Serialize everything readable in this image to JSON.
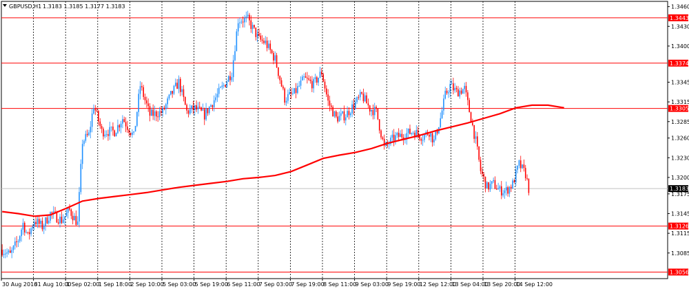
{
  "header": {
    "symbol": "GBPUSD,H1",
    "ohlc": "1.3183 1.3185 1.3177 1.3183"
  },
  "colors": {
    "background": "#ffffff",
    "grid": "#000000",
    "bull_candle": "#1e90ff",
    "bear_candle": "#ff0000",
    "moving_average": "#ff0000",
    "level_line": "#ff0000",
    "level_label_bg": "#ff0000",
    "level_label_text": "#ffffff",
    "current_price_line": "#c0c0c0",
    "current_price_label_bg": "#000000"
  },
  "chart_data": {
    "type": "candlestick",
    "title": "GBPUSD,H1",
    "ylim": [
      1.3046,
      1.3468
    ],
    "y_ticks": [
      1.346,
      1.343,
      1.34,
      1.3345,
      1.3315,
      1.3285,
      1.326,
      1.323,
      1.32,
      1.3175,
      1.3145,
      1.3115,
      1.3085
    ],
    "x_tick_labels": [
      "30 Aug 2016",
      "31 Aug 10:00",
      "1 Sep 02:00",
      "1 Sep 18:00",
      "2 Sep 10:00",
      "5 Sep 03:00",
      "5 Sep 19:00",
      "6 Sep 11:00",
      "7 Sep 03:00",
      "7 Sep 19:00",
      "8 Sep 11:00",
      "9 Sep 03:00",
      "9 Sep 19:00",
      "12 Sep 12:00",
      "13 Sep 04:00",
      "13 Sep 20:00",
      "14 Sep 12:00"
    ],
    "grid": true,
    "horizontal_levels": [
      {
        "value": 1.3443,
        "label": "1.3443"
      },
      {
        "value": 1.3374,
        "label": "1.3374"
      },
      {
        "value": 1.3305,
        "label": "1.3305"
      },
      {
        "value": 1.3126,
        "label": "1.3126"
      },
      {
        "value": 1.3056,
        "label": "1.3056"
      }
    ],
    "current_price": {
      "value": 1.3183,
      "label": "1.3183"
    },
    "moving_average": [
      {
        "i": 0,
        "v": 1.3148
      },
      {
        "i": 10,
        "v": 1.3145
      },
      {
        "i": 20,
        "v": 1.3141
      },
      {
        "i": 30,
        "v": 1.3143
      },
      {
        "i": 40,
        "v": 1.3153
      },
      {
        "i": 50,
        "v": 1.3164
      },
      {
        "i": 60,
        "v": 1.3168
      },
      {
        "i": 70,
        "v": 1.3171
      },
      {
        "i": 80,
        "v": 1.3174
      },
      {
        "i": 90,
        "v": 1.3177
      },
      {
        "i": 100,
        "v": 1.3181
      },
      {
        "i": 110,
        "v": 1.3185
      },
      {
        "i": 120,
        "v": 1.3188
      },
      {
        "i": 130,
        "v": 1.3191
      },
      {
        "i": 140,
        "v": 1.3194
      },
      {
        "i": 150,
        "v": 1.3198
      },
      {
        "i": 160,
        "v": 1.32
      },
      {
        "i": 170,
        "v": 1.3203
      },
      {
        "i": 180,
        "v": 1.3209
      },
      {
        "i": 190,
        "v": 1.3219
      },
      {
        "i": 200,
        "v": 1.3229
      },
      {
        "i": 210,
        "v": 1.3234
      },
      {
        "i": 220,
        "v": 1.3238
      },
      {
        "i": 230,
        "v": 1.3244
      },
      {
        "i": 240,
        "v": 1.3252
      },
      {
        "i": 250,
        "v": 1.3258
      },
      {
        "i": 260,
        "v": 1.3264
      },
      {
        "i": 270,
        "v": 1.3271
      },
      {
        "i": 280,
        "v": 1.3277
      },
      {
        "i": 290,
        "v": 1.3283
      },
      {
        "i": 300,
        "v": 1.329
      },
      {
        "i": 310,
        "v": 1.3297
      },
      {
        "i": 320,
        "v": 1.3306
      },
      {
        "i": 330,
        "v": 1.331
      },
      {
        "i": 340,
        "v": 1.331
      },
      {
        "i": 350,
        "v": 1.3306
      }
    ],
    "anchors": [
      {
        "i": 0,
        "v": 1.309
      },
      {
        "i": 5,
        "v": 1.3082
      },
      {
        "i": 10,
        "v": 1.3105
      },
      {
        "i": 13,
        "v": 1.313
      },
      {
        "i": 16,
        "v": 1.311
      },
      {
        "i": 20,
        "v": 1.3135
      },
      {
        "i": 25,
        "v": 1.3125
      },
      {
        "i": 30,
        "v": 1.3145
      },
      {
        "i": 37,
        "v": 1.3135
      },
      {
        "i": 42,
        "v": 1.315
      },
      {
        "i": 47,
        "v": 1.313
      },
      {
        "i": 50,
        "v": 1.3255
      },
      {
        "i": 54,
        "v": 1.3265
      },
      {
        "i": 57,
        "v": 1.331
      },
      {
        "i": 62,
        "v": 1.327
      },
      {
        "i": 70,
        "v": 1.327
      },
      {
        "i": 75,
        "v": 1.329
      },
      {
        "i": 82,
        "v": 1.3262
      },
      {
        "i": 86,
        "v": 1.334
      },
      {
        "i": 92,
        "v": 1.3295
      },
      {
        "i": 100,
        "v": 1.33
      },
      {
        "i": 105,
        "v": 1.3325
      },
      {
        "i": 110,
        "v": 1.3345
      },
      {
        "i": 115,
        "v": 1.33
      },
      {
        "i": 120,
        "v": 1.3305
      },
      {
        "i": 126,
        "v": 1.3295
      },
      {
        "i": 132,
        "v": 1.3318
      },
      {
        "i": 138,
        "v": 1.334
      },
      {
        "i": 143,
        "v": 1.336
      },
      {
        "i": 147,
        "v": 1.344
      },
      {
        "i": 153,
        "v": 1.344
      },
      {
        "i": 160,
        "v": 1.341
      },
      {
        "i": 164,
        "v": 1.3405
      },
      {
        "i": 170,
        "v": 1.338
      },
      {
        "i": 176,
        "v": 1.332
      },
      {
        "i": 182,
        "v": 1.3328
      },
      {
        "i": 188,
        "v": 1.335
      },
      {
        "i": 194,
        "v": 1.3342
      },
      {
        "i": 199,
        "v": 1.336
      },
      {
        "i": 203,
        "v": 1.3315
      },
      {
        "i": 208,
        "v": 1.329
      },
      {
        "i": 214,
        "v": 1.3295
      },
      {
        "i": 219,
        "v": 1.331
      },
      {
        "i": 224,
        "v": 1.3325
      },
      {
        "i": 229,
        "v": 1.3305
      },
      {
        "i": 233,
        "v": 1.33
      },
      {
        "i": 238,
        "v": 1.3245
      },
      {
        "i": 244,
        "v": 1.326
      },
      {
        "i": 250,
        "v": 1.3265
      },
      {
        "i": 256,
        "v": 1.327
      },
      {
        "i": 262,
        "v": 1.3262
      },
      {
        "i": 266,
        "v": 1.327
      },
      {
        "i": 269,
        "v": 1.3255
      },
      {
        "i": 273,
        "v": 1.329
      },
      {
        "i": 276,
        "v": 1.3325
      },
      {
        "i": 279,
        "v": 1.334
      },
      {
        "i": 283,
        "v": 1.333
      },
      {
        "i": 288,
        "v": 1.3335
      },
      {
        "i": 292,
        "v": 1.329
      },
      {
        "i": 295,
        "v": 1.3255
      },
      {
        "i": 298,
        "v": 1.321
      },
      {
        "i": 302,
        "v": 1.3185
      },
      {
        "i": 306,
        "v": 1.319
      },
      {
        "i": 310,
        "v": 1.318
      },
      {
        "i": 314,
        "v": 1.318
      },
      {
        "i": 318,
        "v": 1.319
      },
      {
        "i": 322,
        "v": 1.322
      },
      {
        "i": 326,
        "v": 1.3205
      },
      {
        "i": 328,
        "v": 1.3183
      }
    ],
    "num_bars": 329
  },
  "axis": {
    "price_labels": [
      "1.3460",
      "1.3430",
      "1.3400",
      "1.3345",
      "1.3315",
      "1.3285",
      "1.3260",
      "1.3230",
      "1.3200",
      "1.3175",
      "1.3145",
      "1.3115",
      "1.3085"
    ]
  }
}
